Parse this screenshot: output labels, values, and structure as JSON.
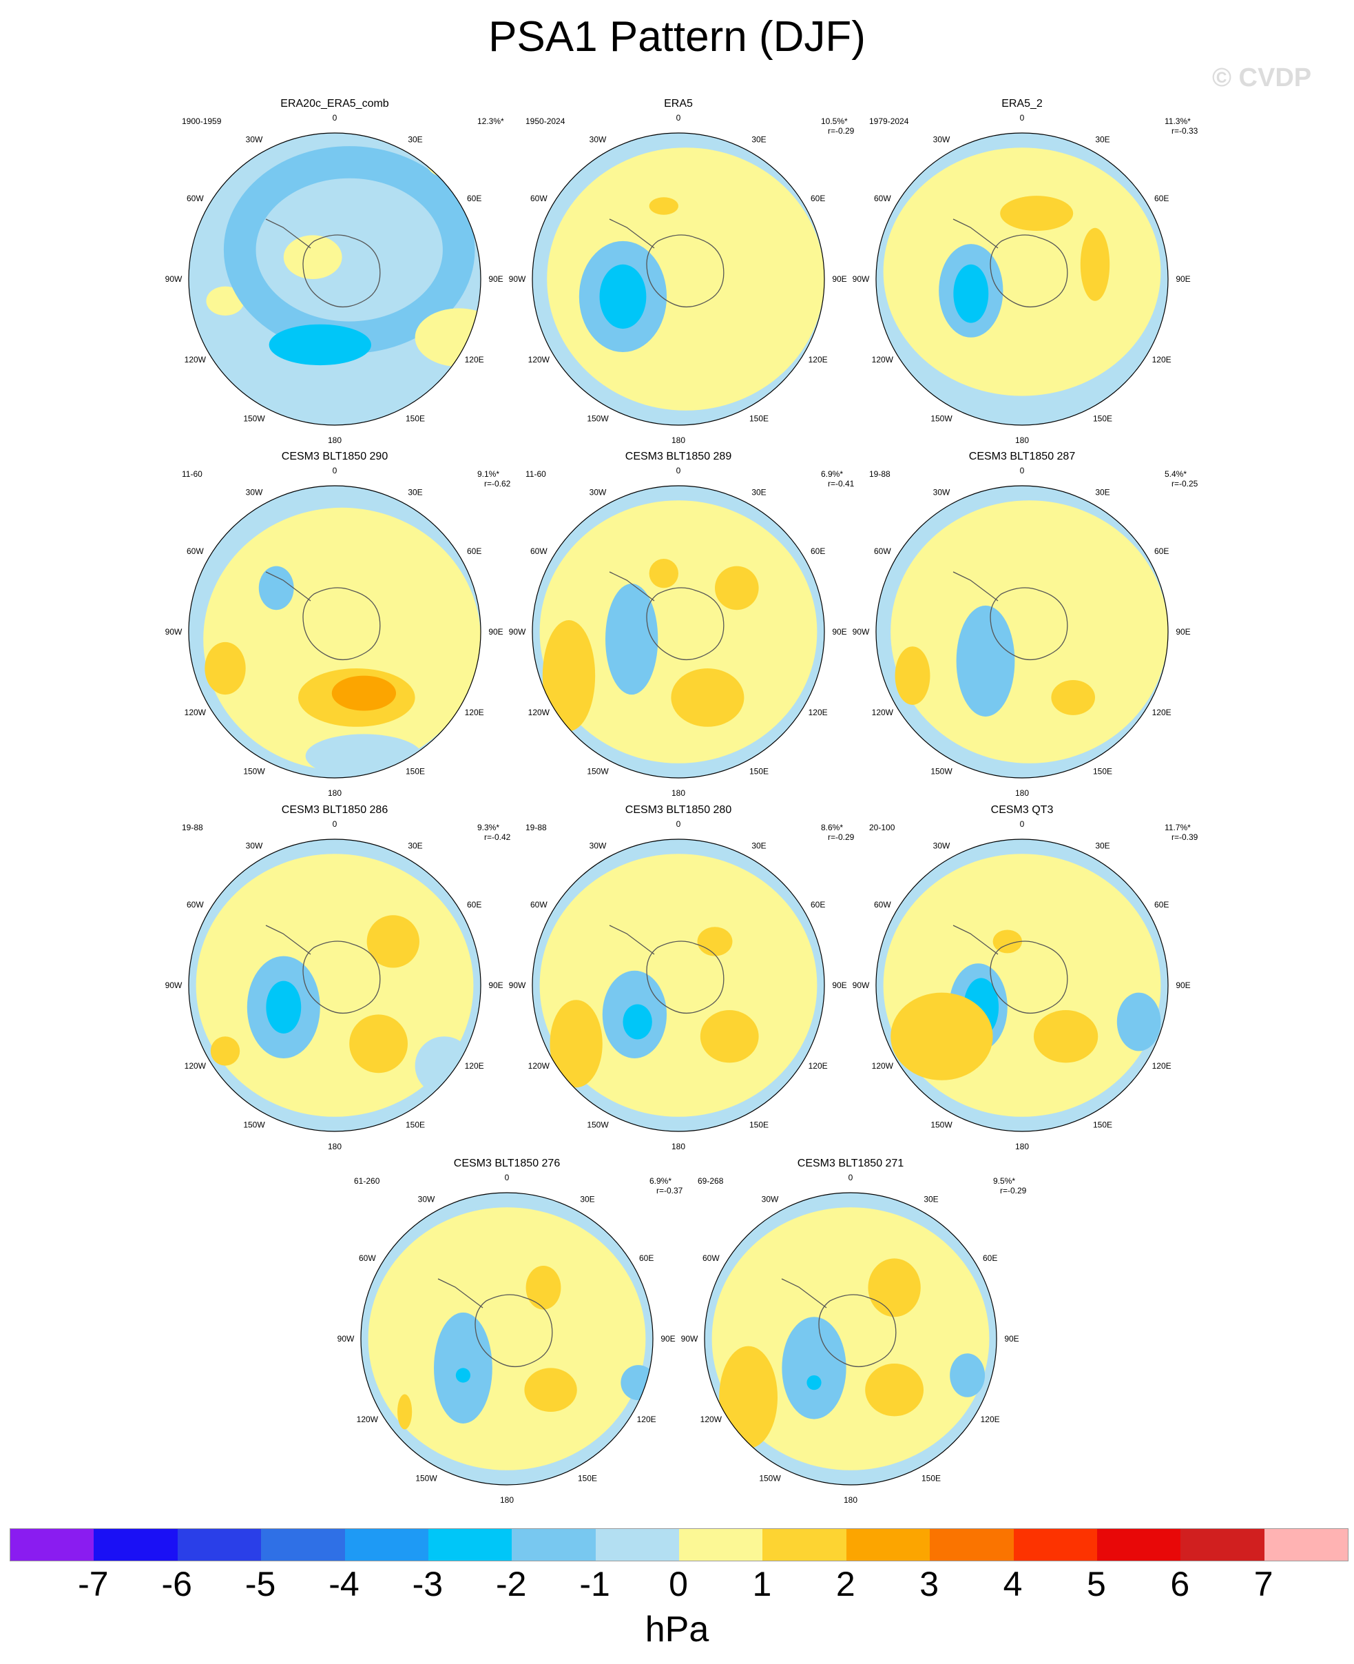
{
  "title": "PSA1 Pattern (DJF)",
  "watermark": "© CVDP",
  "longitude_labels": [
    "0",
    "30E",
    "60E",
    "90E",
    "120E",
    "150E",
    "180",
    "150W",
    "120W",
    "90W",
    "60W",
    "30W"
  ],
  "panels": [
    {
      "title": "ERA20c_ERA5_comb",
      "period": "1900-1959",
      "pct": "12.3%*",
      "r": ""
    },
    {
      "title": "ERA5",
      "period": "1950-2024",
      "pct": "10.5%*",
      "r": "r=-0.29"
    },
    {
      "title": "ERA5_2",
      "period": "1979-2024",
      "pct": "11.3%*",
      "r": "r=-0.33"
    },
    {
      "title": "CESM3 BLT1850 290",
      "period": "11-60",
      "pct": "9.1%*",
      "r": "r=-0.62"
    },
    {
      "title": "CESM3 BLT1850 289",
      "period": "11-60",
      "pct": "6.9%*",
      "r": "r=-0.41"
    },
    {
      "title": "CESM3 BLT1850 287",
      "period": "19-88",
      "pct": "5.4%*",
      "r": "r=-0.25"
    },
    {
      "title": "CESM3 BLT1850 286",
      "period": "19-88",
      "pct": "9.3%*",
      "r": "r=-0.42"
    },
    {
      "title": "CESM3 BLT1850 280",
      "period": "19-88",
      "pct": "8.6%*",
      "r": "r=-0.29"
    },
    {
      "title": "CESM3 QT3",
      "period": "20-100",
      "pct": "11.7%*",
      "r": "r=-0.39"
    },
    {
      "title": "CESM3 BLT1850 276",
      "period": "61-260",
      "pct": "6.9%*",
      "r": "r=-0.37"
    },
    {
      "title": "CESM3 BLT1850 271",
      "period": "69-268",
      "pct": "9.5%*",
      "r": "r=-0.29"
    }
  ],
  "colorbar": {
    "colors": [
      "#8a1cf0",
      "#1a10f5",
      "#2a3fe8",
      "#2f70e6",
      "#1e9af5",
      "#00c6f8",
      "#78c8f0",
      "#b3dff2",
      "#fcf895",
      "#fdd432",
      "#fca500",
      "#fa7400",
      "#fd3300",
      "#e80808",
      "#d11f1f",
      "#ffb3b3"
    ],
    "labels": [
      "-7",
      "-6",
      "-5",
      "-4",
      "-3",
      "-2",
      "-1",
      "0",
      "1",
      "2",
      "3",
      "4",
      "5",
      "6",
      "7"
    ],
    "unit": "hPa"
  },
  "contour_colors": {
    "c_m3": "#00c6f8",
    "c_m2": "#78c8f0",
    "c_m1": "#b3dff2",
    "c_0": "#fcf895",
    "c_1": "#fdd432",
    "c_2": "#fca500",
    "c_3": "#fa7400"
  }
}
